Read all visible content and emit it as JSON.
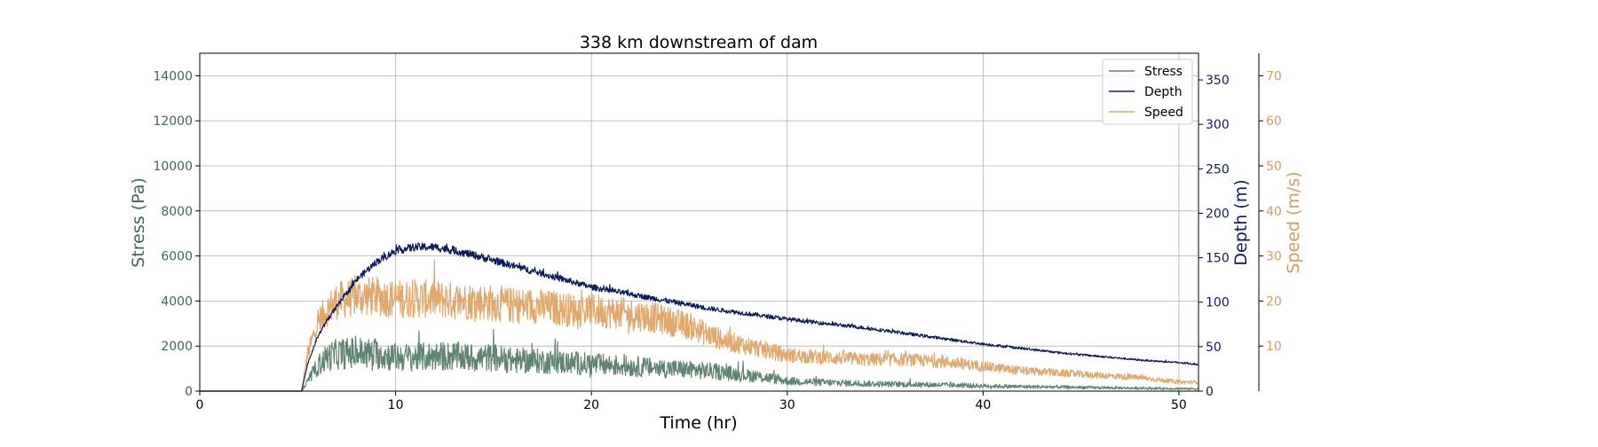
{
  "chart_data": {
    "type": "line",
    "title": "338 km downstream of dam",
    "xlabel": "Time (hr)",
    "xlim": [
      0,
      51
    ],
    "xticks": [
      0,
      10,
      20,
      30,
      40,
      50
    ],
    "grid": true,
    "legend_position": "top-right",
    "axes": {
      "stress": {
        "label": "Stress (Pa)",
        "side": "left",
        "ylim": [
          0,
          15000
        ],
        "ticks": [
          0,
          2000,
          4000,
          6000,
          8000,
          10000,
          12000,
          14000
        ],
        "color": "#3d6b50"
      },
      "depth": {
        "label": "Depth (m)",
        "side": "right",
        "ylim": [
          0,
          380
        ],
        "ticks": [
          0,
          50,
          100,
          150,
          200,
          250,
          300,
          350
        ],
        "color": "#0c1d5a"
      },
      "speed": {
        "label": "Speed (m/s)",
        "side": "right-outer",
        "ylim": [
          0,
          75
        ],
        "ticks": [
          10,
          20,
          30,
          40,
          50,
          60,
          70
        ],
        "color": "#d99a5b"
      }
    },
    "series": [
      {
        "name": "Stress",
        "axis": "stress",
        "color": "#5f8570",
        "noise": 0.6,
        "x": [
          0,
          5.2,
          5.5,
          6,
          6.5,
          7,
          8,
          9,
          10,
          11,
          12,
          13,
          14,
          15,
          16,
          17,
          18,
          19,
          20,
          21,
          22,
          23,
          24,
          25,
          26,
          27,
          28,
          29,
          30,
          32,
          34,
          36,
          38,
          40,
          42,
          44,
          46,
          48,
          50,
          51
        ],
        "y": [
          0,
          0,
          400,
          1100,
          1500,
          1650,
          1700,
          1650,
          1500,
          1500,
          1550,
          1550,
          1450,
          1500,
          1350,
          1350,
          1300,
          1250,
          1200,
          1150,
          1100,
          1050,
          1000,
          950,
          900,
          800,
          700,
          600,
          450,
          380,
          330,
          300,
          270,
          230,
          200,
          180,
          150,
          130,
          110,
          100
        ]
      },
      {
        "name": "Depth",
        "axis": "depth",
        "color": "#0c1d5a",
        "noise": 0.04,
        "x": [
          0,
          5.2,
          5.5,
          6,
          6.5,
          7,
          8,
          9,
          10,
          11,
          12,
          13,
          14,
          15,
          16,
          17,
          18,
          19,
          20,
          21,
          22,
          23,
          24,
          25,
          26,
          27,
          28,
          29,
          30,
          32,
          34,
          36,
          38,
          40,
          42,
          44,
          46,
          48,
          50,
          51
        ],
        "y": [
          0,
          0,
          30,
          60,
          80,
          95,
          125,
          145,
          158,
          162,
          162,
          158,
          153,
          147,
          141,
          135,
          129,
          123,
          117,
          113,
          109,
          105,
          101,
          97,
          93,
          90,
          87,
          84,
          81,
          76,
          71,
          65,
          59,
          53,
          48,
          43,
          39,
          35,
          32,
          30
        ]
      },
      {
        "name": "Speed",
        "axis": "speed",
        "color": "#e0a86c",
        "noise": 0.3,
        "x": [
          0,
          5.2,
          5.5,
          6,
          6.5,
          7,
          8,
          9,
          10,
          11,
          12,
          13,
          14,
          15,
          16,
          17,
          18,
          19,
          20,
          21,
          22,
          23,
          24,
          25,
          26,
          27,
          28,
          29,
          30,
          32,
          34,
          36,
          38,
          40,
          42,
          44,
          46,
          48,
          50,
          51
        ],
        "y": [
          0,
          0,
          8,
          15,
          18,
          20,
          21,
          21,
          20.5,
          20.5,
          20.5,
          20,
          20,
          19.5,
          19,
          19,
          18.5,
          18,
          18,
          17.5,
          17,
          16.5,
          15.5,
          14.5,
          12.5,
          11,
          10,
          9,
          8,
          7.5,
          7,
          7,
          6.5,
          5.5,
          4.5,
          4,
          3.5,
          3,
          2,
          2
        ]
      }
    ]
  }
}
